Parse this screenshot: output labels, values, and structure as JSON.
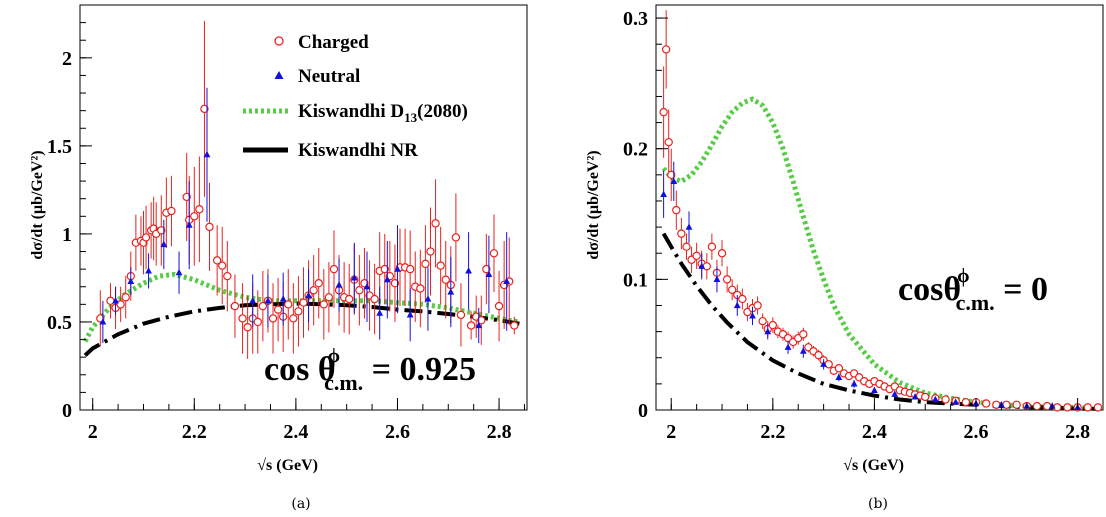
{
  "colors": {
    "charged": "#e8221e",
    "neutral": "#1111dd",
    "d13": "#55cc44",
    "nr": "#000000"
  },
  "chart_data": [
    {
      "type": "scatter",
      "panel_label": "(a)",
      "xlabel": "√s (GeV)",
      "ylabel": "dσ/dt (μb/GeV²)",
      "xlim": [
        1.975,
        2.855
      ],
      "ylim": [
        0,
        2.3
      ],
      "xticks": [
        2,
        2.2,
        2.4,
        2.6,
        2.8
      ],
      "xtick_labels": [
        "2",
        "2.2",
        "2.4",
        "2.6",
        "2.8"
      ],
      "yticks": [
        0,
        0.5,
        1,
        1.5,
        2
      ],
      "ytick_labels": [
        "0",
        "0.5",
        "1",
        "1.5",
        "2"
      ],
      "annotation": {
        "text": "cos θ",
        "sup": "ϕ",
        "sub": "c.m.",
        "suffix": " = 0.925"
      },
      "legend": [
        {
          "label": "Charged",
          "marker": "open-circle",
          "color": "#e8221e"
        },
        {
          "label": "Neutral",
          "marker": "filled-triangle",
          "color": "#1111dd"
        },
        {
          "label": "Kiswandhi D",
          "sub": "13",
          "suffix": "(2080)",
          "marker": "dotted-line",
          "color": "#55cc44"
        },
        {
          "label": "Kiswandhi NR",
          "marker": "dash-dot-line",
          "color": "#000000"
        }
      ],
      "series": [
        {
          "name": "Charged",
          "x": [
            2.015,
            2.035,
            2.045,
            2.055,
            2.065,
            2.075,
            2.085,
            2.095,
            2.1,
            2.105,
            2.115,
            2.12,
            2.125,
            2.135,
            2.145,
            2.155,
            2.185,
            2.19,
            2.2,
            2.21,
            2.22,
            2.23,
            2.245,
            2.255,
            2.265,
            2.28,
            2.295,
            2.305,
            2.315,
            2.325,
            2.335,
            2.345,
            2.355,
            2.365,
            2.375,
            2.385,
            2.395,
            2.405,
            2.415,
            2.425,
            2.435,
            2.445,
            2.455,
            2.465,
            2.475,
            2.485,
            2.495,
            2.505,
            2.515,
            2.525,
            2.535,
            2.545,
            2.555,
            2.565,
            2.575,
            2.585,
            2.595,
            2.605,
            2.615,
            2.625,
            2.635,
            2.645,
            2.655,
            2.665,
            2.675,
            2.685,
            2.695,
            2.705,
            2.715,
            2.725,
            2.745,
            2.755,
            2.765,
            2.775,
            2.79,
            2.8,
            2.81,
            2.82,
            2.83
          ],
          "y": [
            0.52,
            0.62,
            0.58,
            0.6,
            0.64,
            0.76,
            0.95,
            0.96,
            0.95,
            0.98,
            1.02,
            1.03,
            1.0,
            1.02,
            1.12,
            1.13,
            1.21,
            1.08,
            1.1,
            1.14,
            1.71,
            1.04,
            0.85,
            0.82,
            0.76,
            0.59,
            0.52,
            0.47,
            0.52,
            0.5,
            0.59,
            0.62,
            0.52,
            0.57,
            0.53,
            0.6,
            0.52,
            0.56,
            0.61,
            0.65,
            0.68,
            0.72,
            0.6,
            0.64,
            0.8,
            0.68,
            0.64,
            0.63,
            0.74,
            0.68,
            0.72,
            0.65,
            0.63,
            0.79,
            0.8,
            0.76,
            0.72,
            0.81,
            0.81,
            0.8,
            0.7,
            0.69,
            0.83,
            0.9,
            1.06,
            0.82,
            0.74,
            0.71,
            0.98,
            0.54,
            0.48,
            0.53,
            0.51,
            0.8,
            0.89,
            0.59,
            0.71,
            0.73,
            0.48
          ],
          "err": [
            0.16,
            0.1,
            0.12,
            0.1,
            0.12,
            0.14,
            0.16,
            0.14,
            0.18,
            0.18,
            0.16,
            0.18,
            0.18,
            0.2,
            0.2,
            0.2,
            0.25,
            0.25,
            0.28,
            0.3,
            0.5,
            0.25,
            0.2,
            0.22,
            0.2,
            0.18,
            0.2,
            0.18,
            0.2,
            0.18,
            0.2,
            0.18,
            0.2,
            0.18,
            0.2,
            0.2,
            0.2,
            0.2,
            0.2,
            0.2,
            0.2,
            0.2,
            0.2,
            0.2,
            0.22,
            0.2,
            0.2,
            0.2,
            0.2,
            0.2,
            0.2,
            0.2,
            0.2,
            0.22,
            0.2,
            0.2,
            0.22,
            0.22,
            0.22,
            0.22,
            0.2,
            0.22,
            0.22,
            0.25,
            0.25,
            0.22,
            0.22,
            0.22,
            0.25,
            0.18,
            0.08,
            0.12,
            0.14,
            0.2,
            0.22,
            0.2,
            0.25,
            0.25,
            0.05
          ]
        },
        {
          "name": "Neutral",
          "x": [
            2.02,
            2.045,
            2.075,
            2.11,
            2.14,
            2.17,
            2.19,
            2.225,
            2.315,
            2.345,
            2.375,
            2.425,
            2.485,
            2.515,
            2.54,
            2.565,
            2.58,
            2.6,
            2.625,
            2.66,
            2.705,
            2.74,
            2.76,
            2.78,
            2.815
          ],
          "y": [
            0.5,
            0.62,
            0.73,
            0.79,
            0.94,
            0.78,
            1.05,
            1.45,
            0.62,
            0.62,
            0.63,
            0.65,
            0.71,
            0.75,
            0.7,
            0.55,
            0.74,
            0.8,
            0.54,
            0.63,
            0.67,
            0.79,
            0.48,
            0.77,
            0.73
          ],
          "err": [
            0.12,
            0.08,
            0.08,
            0.1,
            0.14,
            0.12,
            0.25,
            0.38,
            0.15,
            0.15,
            0.15,
            0.15,
            0.15,
            0.2,
            0.2,
            0.15,
            0.22,
            0.25,
            0.15,
            0.18,
            0.2,
            0.22,
            0.1,
            0.22,
            0.28
          ]
        },
        {
          "name": "Kiswandhi D13(2080)",
          "x": [
            1.985,
            2.0,
            2.03,
            2.06,
            2.1,
            2.13,
            2.16,
            2.2,
            2.25,
            2.3,
            2.35,
            2.4,
            2.45,
            2.5,
            2.55,
            2.6,
            2.65,
            2.7,
            2.75,
            2.8,
            2.84
          ],
          "y": [
            0.39,
            0.47,
            0.57,
            0.65,
            0.72,
            0.76,
            0.77,
            0.74,
            0.68,
            0.64,
            0.62,
            0.62,
            0.62,
            0.62,
            0.62,
            0.61,
            0.6,
            0.58,
            0.55,
            0.52,
            0.5
          ]
        },
        {
          "name": "Kiswandhi NR",
          "x": [
            1.985,
            2.0,
            2.05,
            2.1,
            2.15,
            2.2,
            2.25,
            2.3,
            2.35,
            2.4,
            2.45,
            2.5,
            2.55,
            2.6,
            2.65,
            2.7,
            2.75,
            2.8,
            2.84
          ],
          "y": [
            0.31,
            0.35,
            0.43,
            0.49,
            0.53,
            0.56,
            0.58,
            0.595,
            0.6,
            0.605,
            0.6,
            0.595,
            0.585,
            0.57,
            0.56,
            0.545,
            0.53,
            0.51,
            0.49
          ]
        }
      ]
    },
    {
      "type": "scatter",
      "panel_label": "(b)",
      "xlabel": "√s (GeV)",
      "ylabel": "dσ/dt (μb/GeV²)",
      "xlim": [
        1.97,
        2.85
      ],
      "ylim": [
        0,
        0.31
      ],
      "xticks": [
        2,
        2.2,
        2.4,
        2.6,
        2.8
      ],
      "xtick_labels": [
        "2",
        "2.2",
        "2.4",
        "2.6",
        "2.8"
      ],
      "yticks": [
        0,
        0.1,
        0.2,
        0.3
      ],
      "ytick_labels": [
        "0",
        "0.1",
        "0.2",
        "0.3"
      ],
      "annotation": {
        "text": "cosθ",
        "sup": "ϕ",
        "sub": "c.m.",
        "suffix": " = 0"
      },
      "series": [
        {
          "name": "Charged",
          "x": [
            1.985,
            1.99,
            1.995,
            2.0,
            2.01,
            2.02,
            2.03,
            2.04,
            2.05,
            2.06,
            2.07,
            2.08,
            2.09,
            2.1,
            2.11,
            2.12,
            2.13,
            2.14,
            2.15,
            2.16,
            2.17,
            2.18,
            2.19,
            2.2,
            2.21,
            2.22,
            2.23,
            2.24,
            2.25,
            2.26,
            2.27,
            2.28,
            2.29,
            2.3,
            2.31,
            2.32,
            2.33,
            2.34,
            2.35,
            2.36,
            2.37,
            2.38,
            2.39,
            2.4,
            2.41,
            2.42,
            2.43,
            2.44,
            2.45,
            2.46,
            2.47,
            2.48,
            2.49,
            2.5,
            2.52,
            2.54,
            2.56,
            2.58,
            2.6,
            2.62,
            2.64,
            2.66,
            2.68,
            2.7,
            2.72,
            2.74,
            2.76,
            2.78,
            2.8,
            2.82,
            2.84
          ],
          "y": [
            0.228,
            0.276,
            0.205,
            0.18,
            0.153,
            0.135,
            0.125,
            0.115,
            0.118,
            0.112,
            0.11,
            0.125,
            0.105,
            0.12,
            0.1,
            0.092,
            0.088,
            0.085,
            0.075,
            0.078,
            0.08,
            0.068,
            0.062,
            0.065,
            0.06,
            0.058,
            0.055,
            0.052,
            0.055,
            0.058,
            0.048,
            0.045,
            0.042,
            0.038,
            0.035,
            0.03,
            0.032,
            0.028,
            0.026,
            0.028,
            0.025,
            0.022,
            0.02,
            0.022,
            0.02,
            0.018,
            0.016,
            0.018,
            0.015,
            0.014,
            0.013,
            0.012,
            0.011,
            0.01,
            0.009,
            0.008,
            0.007,
            0.006,
            0.006,
            0.005,
            0.004,
            0.004,
            0.004,
            0.003,
            0.003,
            0.003,
            0.002,
            0.002,
            0.002,
            0.002,
            0.002
          ],
          "err": [
            0.035,
            0.03,
            0.025,
            0.02,
            0.015,
            0.012,
            0.01,
            0.01,
            0.01,
            0.01,
            0.01,
            0.01,
            0.01,
            0.01,
            0.01,
            0.008,
            0.008,
            0.008,
            0.007,
            0.007,
            0.007,
            0.006,
            0.006,
            0.006,
            0.005,
            0.005,
            0.005,
            0.005,
            0.005,
            0.005,
            0.004,
            0.004,
            0.004,
            0.004,
            0.003,
            0.003,
            0.003,
            0.003,
            0.003,
            0.003,
            0.003,
            0.002,
            0.002,
            0.002,
            0.002,
            0.002,
            0.002,
            0.002,
            0.002,
            0.002,
            0.002,
            0.002,
            0.002,
            0.002,
            0.001,
            0.001,
            0.001,
            0.001,
            0.001,
            0.001,
            0.001,
            0.001,
            0.001,
            0.001,
            0.001,
            0.001,
            0.001,
            0.001,
            0.001,
            0.001,
            0.001
          ]
        },
        {
          "name": "Neutral",
          "x": [
            1.985,
            2.005,
            2.035,
            2.06,
            2.09,
            2.13,
            2.16,
            2.19,
            2.23,
            2.26,
            2.3,
            2.33,
            2.36,
            2.4,
            2.44,
            2.48,
            2.52,
            2.56,
            2.6,
            2.65,
            2.7,
            2.75,
            2.8
          ],
          "y": [
            0.165,
            0.175,
            0.14,
            0.11,
            0.1,
            0.08,
            0.072,
            0.06,
            0.048,
            0.045,
            0.035,
            0.025,
            0.02,
            0.015,
            0.012,
            0.01,
            0.008,
            0.006,
            0.005,
            0.004,
            0.003,
            0.003,
            0.002
          ],
          "err": [
            0.018,
            0.015,
            0.012,
            0.01,
            0.01,
            0.008,
            0.007,
            0.006,
            0.005,
            0.005,
            0.004,
            0.003,
            0.003,
            0.002,
            0.002,
            0.002,
            0.002,
            0.001,
            0.001,
            0.001,
            0.001,
            0.001,
            0.001
          ]
        },
        {
          "name": "Kiswandhi D13(2080)",
          "x": [
            1.985,
            2.0,
            2.02,
            2.04,
            2.06,
            2.08,
            2.1,
            2.12,
            2.14,
            2.16,
            2.18,
            2.2,
            2.22,
            2.24,
            2.26,
            2.28,
            2.3,
            2.32,
            2.35,
            2.4,
            2.45,
            2.5,
            2.55,
            2.6,
            2.65,
            2.7,
            2.75,
            2.8,
            2.84
          ],
          "y": [
            0.185,
            0.178,
            0.175,
            0.18,
            0.19,
            0.203,
            0.217,
            0.228,
            0.235,
            0.238,
            0.233,
            0.22,
            0.2,
            0.175,
            0.148,
            0.122,
            0.1,
            0.08,
            0.058,
            0.035,
            0.021,
            0.013,
            0.009,
            0.006,
            0.004,
            0.003,
            0.002,
            0.002,
            0.001
          ]
        },
        {
          "name": "Kiswandhi NR",
          "x": [
            1.985,
            2.0,
            2.02,
            2.05,
            2.08,
            2.11,
            2.15,
            2.2,
            2.25,
            2.3,
            2.35,
            2.4,
            2.45,
            2.5,
            2.55,
            2.6,
            2.65,
            2.7,
            2.75,
            2.8,
            2.84
          ],
          "y": [
            0.135,
            0.125,
            0.112,
            0.095,
            0.08,
            0.067,
            0.052,
            0.038,
            0.028,
            0.02,
            0.015,
            0.011,
            0.008,
            0.006,
            0.005,
            0.004,
            0.003,
            0.002,
            0.002,
            0.001,
            0.001
          ]
        }
      ]
    }
  ]
}
